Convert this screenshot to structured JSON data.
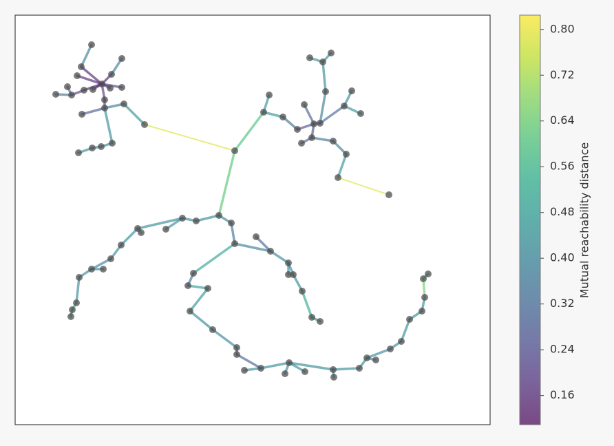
{
  "chart_data": {
    "type": "network",
    "colormap": "viridis",
    "node_color": "#505050",
    "xlim": [
      0,
      690
    ],
    "ylim": [
      0,
      595
    ],
    "clim": [
      0.109,
      0.825
    ],
    "colorbar_label": "Mutual reachability distance",
    "colorbar_ticks": [
      {
        "value": 0.8,
        "label": "0.80"
      },
      0.72,
      0.64,
      0.56,
      0.48,
      {
        "value": 0.4,
        "label": "0.40"
      },
      0.32,
      0.24,
      0.16
    ],
    "nodes": {
      "x": [
        126,
        111,
        96,
        90,
        155,
        140,
        155,
        76,
        59,
        82,
        100,
        113,
        138,
        130,
        130,
        97,
        158,
        188,
        141,
        125,
        112,
        92,
        319,
        361,
        369,
        389,
        410,
        420,
        434,
        443,
        451,
        447,
        428,
        459,
        431,
        416,
        462,
        481,
        469,
        543,
        478,
        489,
        502,
        296,
        314,
        263,
        243,
        219,
        178,
        183,
        154,
        139,
        111,
        128,
        93,
        89,
        83,
        81,
        319,
        350,
        371,
        397,
        397,
        404,
        417,
        431,
        443,
        259,
        251,
        280,
        254,
        287,
        322,
        322,
        357,
        333,
        398,
        392,
        421,
        462,
        463,
        500,
        511,
        524,
        545,
        561,
        573,
        591,
        595,
        593,
        600
      ],
      "y": [
        495,
        552,
        520,
        507,
        532,
        509,
        490,
        491,
        480,
        479,
        486,
        487,
        489,
        472,
        460,
        451,
        466,
        436,
        409,
        404,
        402,
        395,
        398,
        454,
        479,
        447,
        429,
        465,
        437,
        438,
        484,
        527,
        533,
        540,
        417,
        409,
        412,
        393,
        359,
        334,
        463,
        485,
        452,
        304,
        293,
        296,
        300,
        284,
        285,
        279,
        261,
        241,
        226,
        226,
        214,
        177,
        167,
        157,
        263,
        273,
        252,
        235,
        218,
        218,
        194,
        156,
        150,
        220,
        202,
        198,
        165,
        138,
        112,
        102,
        82,
        79,
        90,
        74,
        77,
        80,
        69,
        82,
        97,
        94,
        110,
        121,
        153,
        165,
        185,
        212,
        219
      ]
    },
    "edges": [
      {
        "from": 0,
        "to": 2,
        "distance": 0.15
      },
      {
        "from": 0,
        "to": 3,
        "distance": 0.15
      },
      {
        "from": 0,
        "to": 10,
        "distance": 0.15
      },
      {
        "from": 0,
        "to": 11,
        "distance": 0.15
      },
      {
        "from": 0,
        "to": 5,
        "distance": 0.15
      },
      {
        "from": 0,
        "to": 6,
        "distance": 0.2
      },
      {
        "from": 0,
        "to": 12,
        "distance": 0.15
      },
      {
        "from": 0,
        "to": 13,
        "distance": 0.2
      },
      {
        "from": 2,
        "to": 1,
        "distance": 0.38
      },
      {
        "from": 5,
        "to": 4,
        "distance": 0.38
      },
      {
        "from": 10,
        "to": 9,
        "distance": 0.2
      },
      {
        "from": 9,
        "to": 7,
        "distance": 0.3
      },
      {
        "from": 9,
        "to": 8,
        "distance": 0.35
      },
      {
        "from": 13,
        "to": 14,
        "distance": 0.2
      },
      {
        "from": 14,
        "to": 15,
        "distance": 0.28
      },
      {
        "from": 14,
        "to": 16,
        "distance": 0.38
      },
      {
        "from": 16,
        "to": 17,
        "distance": 0.45
      },
      {
        "from": 14,
        "to": 18,
        "distance": 0.42
      },
      {
        "from": 18,
        "to": 19,
        "distance": 0.4
      },
      {
        "from": 19,
        "to": 20,
        "distance": 0.4
      },
      {
        "from": 20,
        "to": 21,
        "distance": 0.42
      },
      {
        "from": 17,
        "to": 22,
        "distance": 0.78
      },
      {
        "from": 22,
        "to": 23,
        "distance": 0.6
      },
      {
        "from": 23,
        "to": 24,
        "distance": 0.45
      },
      {
        "from": 23,
        "to": 25,
        "distance": 0.45
      },
      {
        "from": 25,
        "to": 26,
        "distance": 0.35
      },
      {
        "from": 26,
        "to": 28,
        "distance": 0.25
      },
      {
        "from": 27,
        "to": 28,
        "distance": 0.3
      },
      {
        "from": 28,
        "to": 29,
        "distance": 0.2
      },
      {
        "from": 29,
        "to": 30,
        "distance": 0.38
      },
      {
        "from": 30,
        "to": 31,
        "distance": 0.42
      },
      {
        "from": 31,
        "to": 32,
        "distance": 0.42
      },
      {
        "from": 31,
        "to": 33,
        "distance": 0.42
      },
      {
        "from": 28,
        "to": 34,
        "distance": 0.25
      },
      {
        "from": 34,
        "to": 35,
        "distance": 0.28
      },
      {
        "from": 34,
        "to": 36,
        "distance": 0.35
      },
      {
        "from": 36,
        "to": 37,
        "distance": 0.38
      },
      {
        "from": 37,
        "to": 38,
        "distance": 0.45
      },
      {
        "from": 38,
        "to": 39,
        "distance": 0.78
      },
      {
        "from": 29,
        "to": 40,
        "distance": 0.32
      },
      {
        "from": 40,
        "to": 41,
        "distance": 0.42
      },
      {
        "from": 40,
        "to": 42,
        "distance": 0.45
      },
      {
        "from": 22,
        "to": 43,
        "distance": 0.62
      },
      {
        "from": 43,
        "to": 44,
        "distance": 0.4
      },
      {
        "from": 43,
        "to": 45,
        "distance": 0.42
      },
      {
        "from": 45,
        "to": 46,
        "distance": 0.42
      },
      {
        "from": 46,
        "to": 47,
        "distance": 0.42
      },
      {
        "from": 46,
        "to": 48,
        "distance": 0.42
      },
      {
        "from": 48,
        "to": 49,
        "distance": 0.4
      },
      {
        "from": 48,
        "to": 50,
        "distance": 0.42
      },
      {
        "from": 50,
        "to": 51,
        "distance": 0.42
      },
      {
        "from": 51,
        "to": 52,
        "distance": 0.4
      },
      {
        "from": 52,
        "to": 53,
        "distance": 0.4
      },
      {
        "from": 52,
        "to": 54,
        "distance": 0.42
      },
      {
        "from": 54,
        "to": 55,
        "distance": 0.42
      },
      {
        "from": 55,
        "to": 56,
        "distance": 0.55
      },
      {
        "from": 56,
        "to": 57,
        "distance": 0.45
      },
      {
        "from": 44,
        "to": 58,
        "distance": 0.35
      },
      {
        "from": 58,
        "to": 60,
        "distance": 0.38
      },
      {
        "from": 59,
        "to": 60,
        "distance": 0.3
      },
      {
        "from": 60,
        "to": 61,
        "distance": 0.42
      },
      {
        "from": 61,
        "to": 62,
        "distance": 0.42
      },
      {
        "from": 61,
        "to": 63,
        "distance": 0.4
      },
      {
        "from": 63,
        "to": 64,
        "distance": 0.42
      },
      {
        "from": 64,
        "to": 65,
        "distance": 0.52
      },
      {
        "from": 65,
        "to": 66,
        "distance": 0.45
      },
      {
        "from": 58,
        "to": 67,
        "distance": 0.5
      },
      {
        "from": 67,
        "to": 68,
        "distance": 0.35
      },
      {
        "from": 68,
        "to": 69,
        "distance": 0.48
      },
      {
        "from": 69,
        "to": 70,
        "distance": 0.45
      },
      {
        "from": 70,
        "to": 71,
        "distance": 0.42
      },
      {
        "from": 71,
        "to": 72,
        "distance": 0.4
      },
      {
        "from": 72,
        "to": 73,
        "distance": 0.35
      },
      {
        "from": 73,
        "to": 74,
        "distance": 0.3
      },
      {
        "from": 74,
        "to": 75,
        "distance": 0.42
      },
      {
        "from": 74,
        "to": 76,
        "distance": 0.42
      },
      {
        "from": 76,
        "to": 77,
        "distance": 0.42
      },
      {
        "from": 76,
        "to": 78,
        "distance": 0.42
      },
      {
        "from": 76,
        "to": 79,
        "distance": 0.42
      },
      {
        "from": 79,
        "to": 80,
        "distance": 0.42
      },
      {
        "from": 79,
        "to": 81,
        "distance": 0.42
      },
      {
        "from": 81,
        "to": 82,
        "distance": 0.42
      },
      {
        "from": 82,
        "to": 83,
        "distance": 0.38
      },
      {
        "from": 82,
        "to": 84,
        "distance": 0.42
      },
      {
        "from": 84,
        "to": 85,
        "distance": 0.42
      },
      {
        "from": 85,
        "to": 86,
        "distance": 0.42
      },
      {
        "from": 86,
        "to": 87,
        "distance": 0.42
      },
      {
        "from": 87,
        "to": 88,
        "distance": 0.42
      },
      {
        "from": 88,
        "to": 89,
        "distance": 0.65
      },
      {
        "from": 89,
        "to": 90,
        "distance": 0.5
      }
    ]
  }
}
